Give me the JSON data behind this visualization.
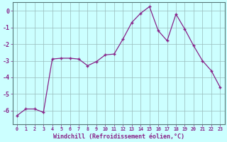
{
  "hours": [
    0,
    1,
    2,
    3,
    4,
    5,
    6,
    7,
    8,
    9,
    10,
    11,
    12,
    13,
    14,
    15,
    16,
    17,
    18,
    19,
    20,
    21,
    22,
    23
  ],
  "values": [
    -6.3,
    -5.9,
    -5.9,
    -6.1,
    -2.9,
    -2.85,
    -2.85,
    -2.9,
    -3.3,
    -3.05,
    -2.65,
    -2.6,
    -1.7,
    -0.7,
    -0.15,
    0.25,
    -1.2,
    -1.8,
    -0.2,
    -1.1,
    -2.1,
    -3.0,
    -3.6,
    -4.6
  ],
  "line_color": "#882288",
  "marker": "+",
  "bg_color": "#ccffff",
  "grid_color": "#99bbbb",
  "xlabel": "Windchill (Refroidissement éolien,°C)",
  "tick_color": "#882288",
  "ylim": [
    -6.8,
    0.5
  ],
  "yticks": [
    0,
    -1,
    -2,
    -3,
    -4,
    -5,
    -6
  ],
  "figsize": [
    3.2,
    2.0
  ],
  "dpi": 100
}
